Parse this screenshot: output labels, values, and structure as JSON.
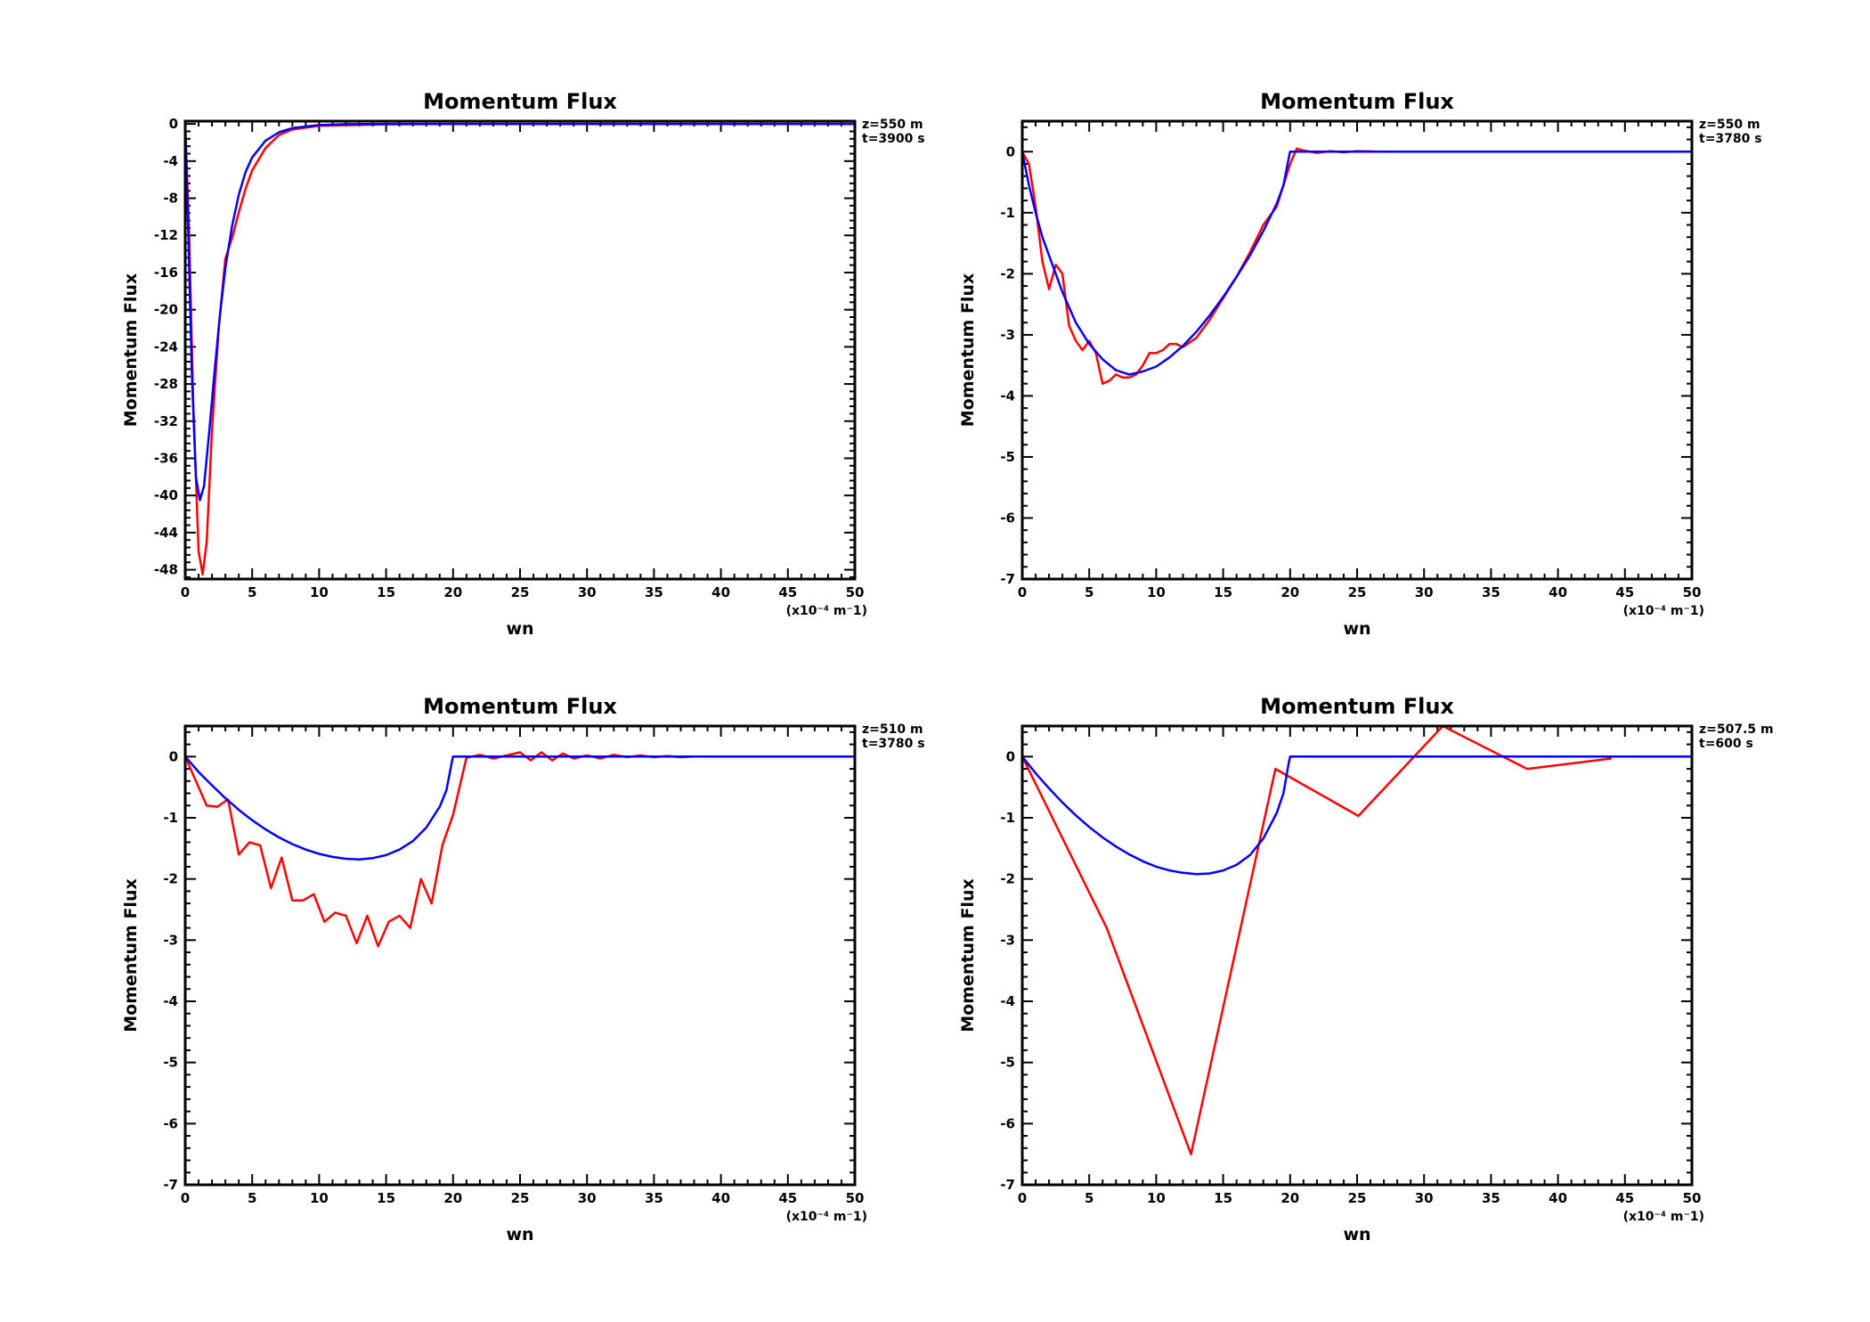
{
  "colors": {
    "red_series": "#ff0000",
    "blue_series": "#0000ff",
    "axes": "#000000"
  },
  "chart_data": [
    {
      "type": "line",
      "title": "Momentum Flux",
      "xlabel": "wn",
      "ylabel": "Momentum Flux",
      "x_unit": "(x10⁻⁴ m⁻1)",
      "annotation_z": "z=550  m",
      "annotation_t": "t=3900  s",
      "xlim": [
        0,
        50
      ],
      "ylim": [
        -49,
        0.3
      ],
      "xticks": [
        0,
        5,
        10,
        15,
        20,
        25,
        30,
        35,
        40,
        45,
        50
      ],
      "yticks": [
        0,
        -4,
        -8,
        -12,
        -16,
        -20,
        -24,
        -28,
        -32,
        -36,
        -40,
        -44,
        -48
      ],
      "grid": false,
      "series": [
        {
          "color": "#ff0000",
          "x": [
            0,
            0.3,
            0.6,
            1,
            1.3,
            1.6,
            2,
            2.5,
            3,
            3.5,
            4,
            4.5,
            5,
            6,
            7,
            8,
            10,
            15,
            20,
            50
          ],
          "y": [
            0,
            -12,
            -30,
            -46,
            -48.5,
            -45,
            -33,
            -22,
            -14.5,
            -12.3,
            -9.5,
            -7,
            -5,
            -2.6,
            -1.2,
            -0.6,
            -0.2,
            -0.05,
            0,
            0
          ]
        },
        {
          "color": "#0000ff",
          "x": [
            0,
            0.2,
            0.5,
            0.8,
            1.1,
            1.4,
            1.8,
            2.2,
            2.6,
            3,
            3.5,
            4,
            4.5,
            5,
            6,
            7,
            8,
            10,
            12,
            15,
            50
          ],
          "y": [
            0,
            -10,
            -27,
            -38,
            -40.5,
            -39,
            -33,
            -26.5,
            -20.5,
            -15.5,
            -11,
            -7.6,
            -5.2,
            -3.6,
            -1.8,
            -0.9,
            -0.45,
            -0.12,
            -0.03,
            0,
            0
          ]
        }
      ]
    },
    {
      "type": "line",
      "title": "Momentum Flux",
      "xlabel": "wn",
      "ylabel": "Momentum Flux",
      "x_unit": "(x10⁻⁴ m⁻1)",
      "annotation_z": "z=550  m",
      "annotation_t": "t=3780  s",
      "xlim": [
        0,
        50
      ],
      "ylim": [
        -7,
        0.5
      ],
      "xticks": [
        0,
        5,
        10,
        15,
        20,
        25,
        30,
        35,
        40,
        45,
        50
      ],
      "yticks": [
        0,
        -1,
        -2,
        -3,
        -4,
        -5,
        -6,
        -7
      ],
      "grid": false,
      "series": [
        {
          "color": "#ff0000",
          "x": [
            0,
            0.5,
            1,
            1.5,
            2,
            2.5,
            3,
            3.5,
            4,
            4.5,
            5,
            5.5,
            6,
            6.5,
            7,
            7.5,
            8,
            8.5,
            9,
            9.5,
            10,
            10.5,
            11,
            11.5,
            12,
            13,
            14,
            15,
            16,
            17,
            18,
            19,
            19.5,
            20,
            20.5,
            21,
            22,
            23,
            24,
            25,
            27
          ],
          "y": [
            0,
            -0.2,
            -0.9,
            -1.8,
            -2.25,
            -1.85,
            -2.0,
            -2.85,
            -3.1,
            -3.25,
            -3.1,
            -3.3,
            -3.8,
            -3.75,
            -3.65,
            -3.7,
            -3.7,
            -3.65,
            -3.5,
            -3.3,
            -3.3,
            -3.25,
            -3.15,
            -3.15,
            -3.2,
            -3.05,
            -2.75,
            -2.4,
            -2.05,
            -1.65,
            -1.2,
            -0.9,
            -0.55,
            -0.2,
            0.05,
            0.02,
            -0.02,
            0.01,
            -0.01,
            0.01,
            0
          ]
        },
        {
          "color": "#0000ff",
          "x": [
            0,
            0.5,
            1,
            1.5,
            2,
            3,
            4,
            5,
            6,
            7,
            8,
            9,
            10,
            11,
            12,
            13,
            14,
            15,
            16,
            17,
            18,
            19,
            19.5,
            19.9,
            20,
            50
          ],
          "y": [
            0,
            -0.55,
            -1.0,
            -1.4,
            -1.7,
            -2.3,
            -2.8,
            -3.15,
            -3.4,
            -3.58,
            -3.65,
            -3.6,
            -3.52,
            -3.37,
            -3.18,
            -2.95,
            -2.68,
            -2.38,
            -2.05,
            -1.7,
            -1.3,
            -0.85,
            -0.55,
            -0.1,
            0,
            0
          ]
        }
      ]
    },
    {
      "type": "line",
      "title": "Momentum Flux",
      "xlabel": "wn",
      "ylabel": "Momentum Flux",
      "x_unit": "(x10⁻⁴ m⁻1)",
      "annotation_z": "z=510  m",
      "annotation_t": "t=3780  s",
      "xlim": [
        0,
        50
      ],
      "ylim": [
        -7,
        0.5
      ],
      "xticks": [
        0,
        5,
        10,
        15,
        20,
        25,
        30,
        35,
        40,
        45,
        50
      ],
      "yticks": [
        0,
        -1,
        -2,
        -3,
        -4,
        -5,
        -6,
        -7
      ],
      "grid": false,
      "series": [
        {
          "color": "#ff0000",
          "x": [
            0,
            1.6,
            2.4,
            3.2,
            4,
            4.8,
            5.6,
            6.4,
            7.2,
            8,
            8.8,
            9.6,
            10.4,
            11.2,
            12,
            12.8,
            13.6,
            14.4,
            15.2,
            16,
            16.8,
            17.6,
            18.4,
            19.2,
            20,
            21,
            22,
            23,
            24,
            25,
            25.8,
            26.6,
            27.4,
            28.2,
            29,
            30,
            31,
            32,
            33,
            34,
            35,
            36,
            37,
            38,
            50
          ],
          "y": [
            0,
            -0.8,
            -0.82,
            -0.7,
            -1.6,
            -1.4,
            -1.45,
            -2.15,
            -1.65,
            -2.35,
            -2.35,
            -2.25,
            -2.7,
            -2.55,
            -2.6,
            -3.05,
            -2.6,
            -3.1,
            -2.7,
            -2.6,
            -2.8,
            -2.0,
            -2.4,
            -1.45,
            -0.95,
            -0.02,
            0.03,
            -0.03,
            0.02,
            0.07,
            -0.06,
            0.07,
            -0.06,
            0.05,
            -0.03,
            0.02,
            -0.03,
            0.03,
            -0.01,
            0.02,
            -0.01,
            0.01,
            -0.01,
            0,
            0
          ]
        },
        {
          "color": "#0000ff",
          "x": [
            0,
            1,
            2,
            3,
            4,
            5,
            6,
            7,
            8,
            9,
            10,
            11,
            12,
            13,
            14,
            15,
            16,
            17,
            18,
            19,
            19.5,
            19.9,
            20,
            50
          ],
          "y": [
            0,
            -0.25,
            -0.47,
            -0.68,
            -0.87,
            -1.04,
            -1.19,
            -1.32,
            -1.43,
            -1.52,
            -1.59,
            -1.64,
            -1.67,
            -1.68,
            -1.66,
            -1.61,
            -1.52,
            -1.38,
            -1.16,
            -0.82,
            -0.55,
            -0.1,
            0,
            0
          ]
        }
      ]
    },
    {
      "type": "line",
      "title": "Momentum Flux",
      "xlabel": "wn",
      "ylabel": "Momentum Flux",
      "x_unit": "(x10⁻⁴ m⁻1)",
      "annotation_z": "z=507.5  m",
      "annotation_t": "t=600  s",
      "xlim": [
        0,
        50
      ],
      "ylim": [
        -7,
        0.5
      ],
      "xticks": [
        0,
        5,
        10,
        15,
        20,
        25,
        30,
        35,
        40,
        45,
        50
      ],
      "yticks": [
        0,
        -1,
        -2,
        -3,
        -4,
        -5,
        -6,
        -7
      ],
      "grid": false,
      "series": [
        {
          "color": "#ff0000",
          "x": [
            0,
            6.3,
            12.6,
            18.9,
            25.1,
            31.4,
            37.7,
            44
          ],
          "y": [
            0,
            -2.8,
            -6.5,
            -0.2,
            -0.97,
            0.55,
            -0.2,
            -0.03
          ]
        },
        {
          "color": "#0000ff",
          "x": [
            0,
            1,
            2,
            3,
            4,
            5,
            6,
            7,
            8,
            9,
            10,
            11,
            12,
            13,
            14,
            15,
            16,
            17,
            18,
            19,
            19.5,
            19.9,
            20,
            50
          ],
          "y": [
            0,
            -0.27,
            -0.52,
            -0.75,
            -0.96,
            -1.15,
            -1.32,
            -1.47,
            -1.6,
            -1.71,
            -1.8,
            -1.86,
            -1.9,
            -1.92,
            -1.91,
            -1.86,
            -1.77,
            -1.61,
            -1.34,
            -0.92,
            -0.6,
            -0.1,
            0,
            0
          ]
        }
      ]
    }
  ]
}
